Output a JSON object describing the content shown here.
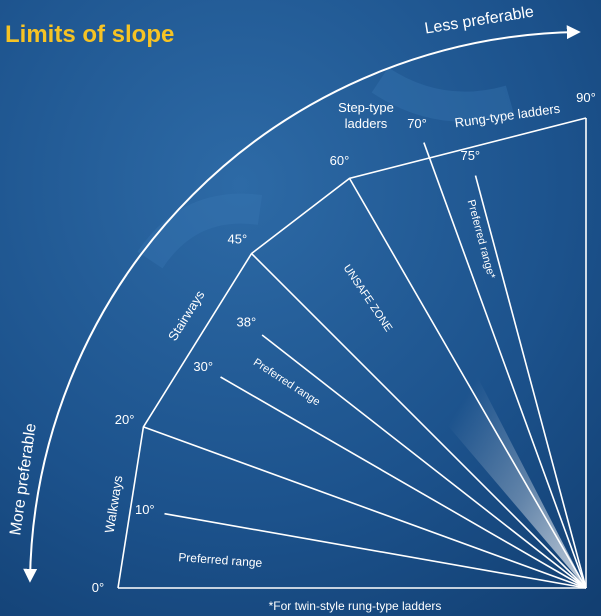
{
  "title": "Limits of slope",
  "arc_labels": {
    "top": "Less preferable",
    "left": "More preferable"
  },
  "angles": [
    {
      "value": 0,
      "label": "0°"
    },
    {
      "value": 10,
      "label": "10°"
    },
    {
      "value": 20,
      "label": "20°"
    },
    {
      "value": 30,
      "label": "30°"
    },
    {
      "value": 38,
      "label": "38°"
    },
    {
      "value": 45,
      "label": "45°"
    },
    {
      "value": 60,
      "label": "60°"
    },
    {
      "value": 70,
      "label": "70°"
    },
    {
      "value": 75,
      "label": "75°"
    },
    {
      "value": 90,
      "label": "90°"
    }
  ],
  "zones": {
    "walkways": "Walkways",
    "stairways": "Stairways",
    "step_type": [
      "Step-type",
      "ladders"
    ],
    "rung_type": "Rung-type ladders",
    "unsafe": "UNSAFE ZONE",
    "preferred_low": "Preferred range",
    "preferred_mid": "Preferred range",
    "preferred_high": "Preferred range*"
  },
  "footnote": "*For twin-style rung-type ladders"
}
